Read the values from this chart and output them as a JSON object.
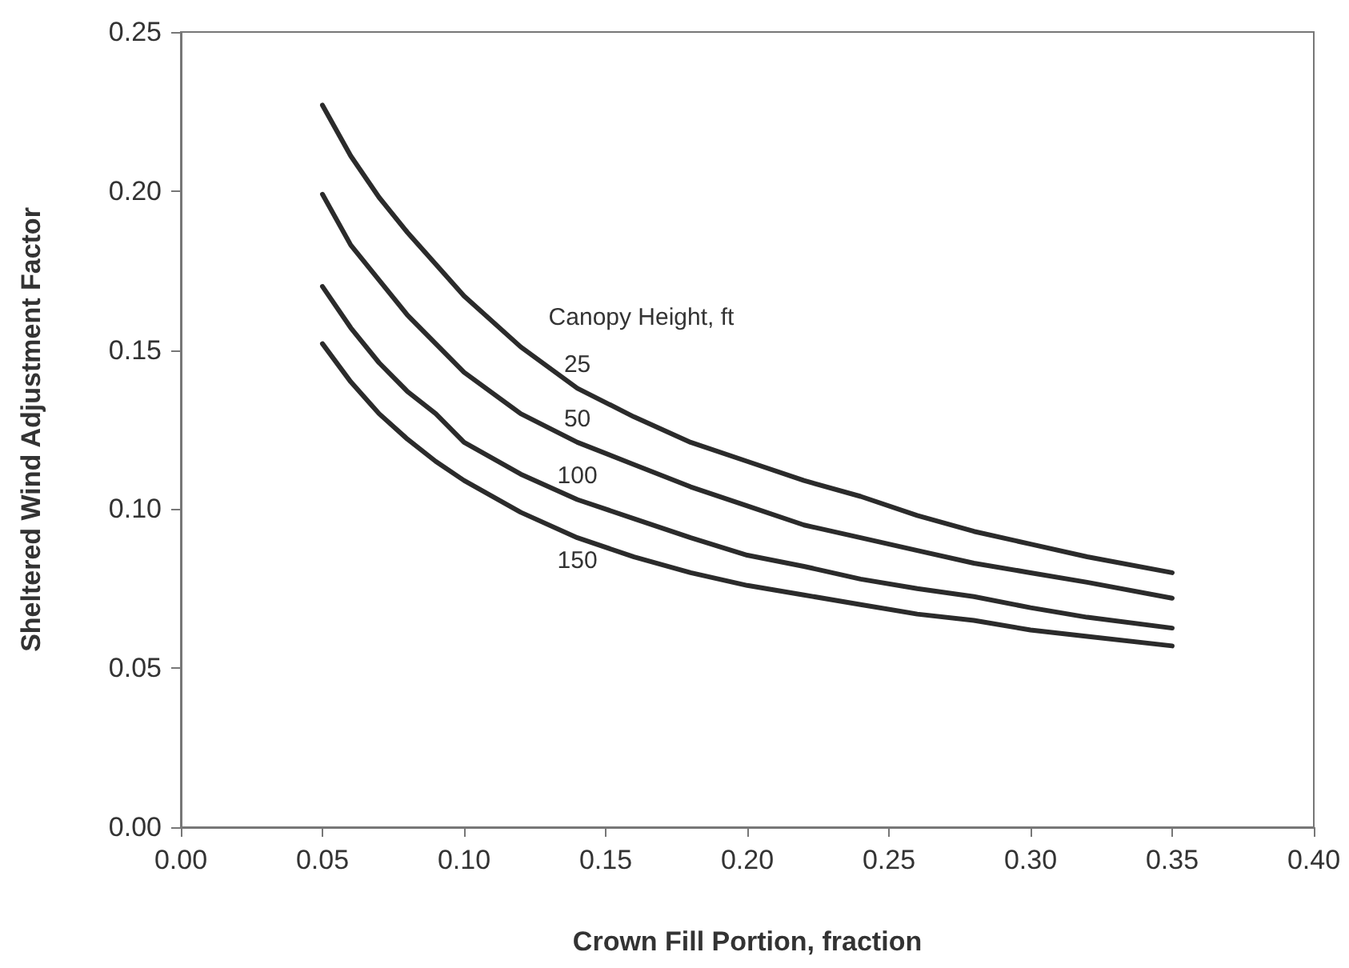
{
  "chart_data": {
    "type": "line",
    "xlabel": "Crown Fill Portion, fraction",
    "ylabel": "Sheltered Wind Adjustment Factor",
    "legend_title": "Canopy Height, ft",
    "x": [
      0.05,
      0.06,
      0.07,
      0.08,
      0.09,
      0.1,
      0.12,
      0.14,
      0.16,
      0.18,
      0.2,
      0.22,
      0.24,
      0.26,
      0.28,
      0.3,
      0.32,
      0.35
    ],
    "series": [
      {
        "name": "25",
        "color": "#2b2b2b",
        "values": [
          0.227,
          0.211,
          0.198,
          0.187,
          0.177,
          0.167,
          0.151,
          0.138,
          0.129,
          0.121,
          0.115,
          0.109,
          0.104,
          0.098,
          0.093,
          0.089,
          0.085,
          0.08
        ]
      },
      {
        "name": "50",
        "color": "#2b2b2b",
        "values": [
          0.199,
          0.183,
          0.172,
          0.161,
          0.152,
          0.143,
          0.13,
          0.121,
          0.114,
          0.107,
          0.101,
          0.095,
          0.091,
          0.087,
          0.083,
          0.08,
          0.077,
          0.072
        ]
      },
      {
        "name": "100",
        "color": "#2b2b2b",
        "values": [
          0.17,
          0.157,
          0.146,
          0.137,
          0.13,
          0.121,
          0.111,
          0.103,
          0.097,
          0.091,
          0.0855,
          0.082,
          0.078,
          0.075,
          0.0725,
          0.069,
          0.066,
          0.0626
        ]
      },
      {
        "name": "150",
        "color": "#2b2b2b",
        "values": [
          0.152,
          0.14,
          0.13,
          0.122,
          0.115,
          0.109,
          0.099,
          0.091,
          0.085,
          0.08,
          0.076,
          0.073,
          0.07,
          0.067,
          0.065,
          0.062,
          0.06,
          0.057
        ]
      }
    ],
    "xlim": [
      0,
      0.4
    ],
    "xticks": [
      {
        "value": 0,
        "label": "0.00"
      },
      {
        "value": 0.05,
        "label": "0.05"
      },
      {
        "value": 0.1,
        "label": "0.10"
      },
      {
        "value": 0.15,
        "label": "0.15"
      },
      {
        "value": 0.2,
        "label": "0.20"
      },
      {
        "value": 0.25,
        "label": "0.25"
      },
      {
        "value": 0.3,
        "label": "0.30"
      },
      {
        "value": 0.35,
        "label": "0.35"
      },
      {
        "value": 0.4,
        "label": "0.40"
      }
    ],
    "ylim": [
      0,
      0.25
    ],
    "yticks": [
      {
        "value": 0,
        "label": "0.00"
      },
      {
        "value": 0.05,
        "label": "0.05"
      },
      {
        "value": 0.1,
        "label": "0.10"
      },
      {
        "value": 0.15,
        "label": "0.15"
      },
      {
        "value": 0.2,
        "label": "0.20"
      },
      {
        "value": 0.25,
        "label": "0.25"
      }
    ],
    "grid": false,
    "legend": false,
    "marker": "none",
    "line_style": "solid"
  }
}
